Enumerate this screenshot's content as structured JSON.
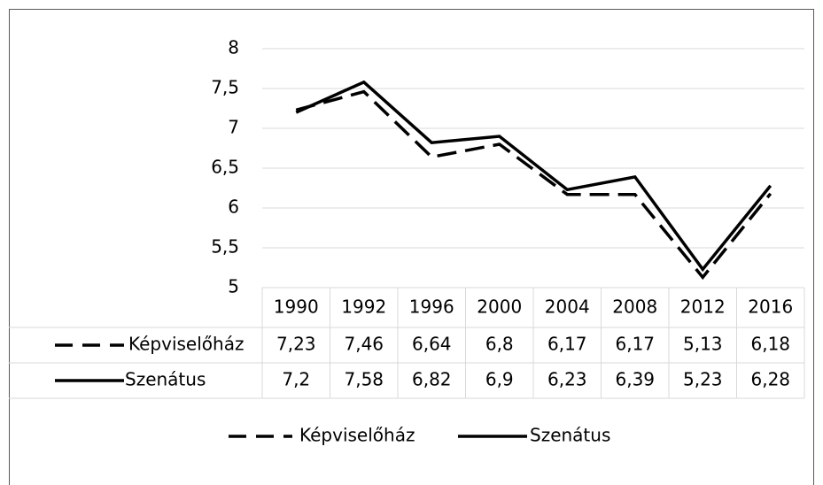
{
  "chart_data": {
    "type": "line",
    "categories": [
      "1990",
      "1992",
      "1996",
      "2000",
      "2004",
      "2008",
      "2012",
      "2016"
    ],
    "series": [
      {
        "name": "Képviselőház",
        "color": "#000000",
        "dash": "dashed",
        "values": [
          7.23,
          7.46,
          6.64,
          6.8,
          6.17,
          6.17,
          5.13,
          6.18
        ],
        "value_labels": [
          "7,23",
          "7,46",
          "6,64",
          "6,8",
          "6,17",
          "6,17",
          "5,13",
          "6,18"
        ]
      },
      {
        "name": "Szenátus",
        "color": "#000000",
        "dash": "solid",
        "values": [
          7.2,
          7.58,
          6.82,
          6.9,
          6.23,
          6.39,
          5.23,
          6.28
        ],
        "value_labels": [
          "7,2",
          "7,58",
          "6,82",
          "6,9",
          "6,23",
          "6,39",
          "5,23",
          "6,28"
        ]
      }
    ],
    "ylim": [
      5,
      8
    ],
    "yticks": [
      5,
      {
        "value": 5.5,
        "label": "5,5"
      },
      6,
      {
        "value": 6.5,
        "label": "6,5"
      },
      7,
      {
        "value": 7.5,
        "label": "7,5"
      },
      8
    ],
    "grid": true,
    "legend": "bottom",
    "data_table": true
  }
}
